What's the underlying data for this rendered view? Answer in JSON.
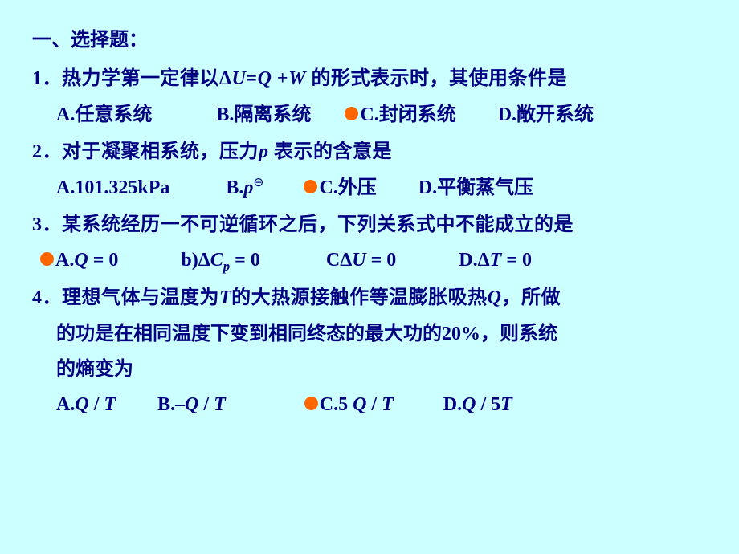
{
  "background_color": "#ccffff",
  "text_color": "#000080",
  "marker_color": "#ff6600",
  "font_size_pt": 18,
  "section_title": "一、选择题：",
  "questions": [
    {
      "num": "1．",
      "text_parts": [
        "热力学第一定律以",
        "Δ",
        "U",
        "=",
        "Q",
        " +",
        "W",
        " 的形式表示时，其使用条件是"
      ],
      "text_italic_idx": [
        2,
        4,
        6
      ],
      "choices": [
        {
          "label": "A.",
          "text": "任意系统",
          "marked": false
        },
        {
          "label": "B.",
          "text": " 隔离系统",
          "marked": false
        },
        {
          "label": "C.",
          "text": "封闭系统",
          "marked": true
        },
        {
          "label": "D.",
          "text": " 敞开系统",
          "marked": false
        }
      ],
      "gaps": [
        0,
        80,
        42,
        52
      ]
    },
    {
      "num": "2．",
      "text": "对于凝聚相系统，压力",
      "text_italic_tail": "p",
      "text_tail": " 表示的含意是",
      "choices": [
        {
          "label": "A.",
          "text": " 101.325kPa",
          "tnr": true,
          "marked": false
        },
        {
          "label": "B.",
          "text_html": " <span class='tnr' style='font-style:italic'>p</span><span class='sup-circle'>⊖</span>",
          "marked": false
        },
        {
          "label": "C.",
          "text": " 外压",
          "marked": true
        },
        {
          "label": "D.",
          "text": " 平衡蒸气压",
          "marked": false
        }
      ],
      "gaps": [
        0,
        70,
        50,
        52
      ]
    },
    {
      "num": "3．",
      "text": "某系统经历一不可逆循环之后，下列关系式中不能成立的是",
      "choices": [
        {
          "label": "A.",
          "text_html": " <span class='tnr' style='font-style:italic'>Q</span> <span class='tnr'>= 0</span>",
          "marked": true
        },
        {
          "label": "b)",
          "text_html": " <span class='tnr'>Δ</span><span class='tnr' style='font-style:italic'>C</span><span class='sub tnr'>p</span> <span class='tnr'>= 0</span>",
          "marked": false
        },
        {
          "label": "C",
          "text_html": " <span class='tnr'>Δ</span><span class='tnr' style='font-style:italic'>U</span> <span class='tnr'>= 0</span>",
          "marked": false
        },
        {
          "label": "D.",
          "text_html": "<span class='tnr'>Δ</span><span class='tnr' style='font-style:italic'>T</span> <span class='tnr'>= 0</span>",
          "marked": false
        }
      ],
      "gaps": [
        0,
        78,
        82,
        78
      ]
    },
    {
      "num": "4．",
      "lines": [
        {
          "pre": "理想气体与温度为",
          "it": "T",
          "post": "的大热源接触作等温膨胀吸热",
          "it2": "Q",
          "post2": "，所做"
        },
        {
          "text": "的功是在相同温度下变到相同终态的最大功的20%，则系统"
        },
        {
          "text": "的熵变为"
        }
      ],
      "choices": [
        {
          "label": "A.",
          "text_html": " <span class='tnr' style='font-style:italic'>Q</span> <span class='tnr'>/</span> <span class='tnr' style='font-style:italic'>T</span>",
          "marked": false
        },
        {
          "label": "B.",
          "text_html": " <span class='tnr'>–</span><span class='tnr' style='font-style:italic'>Q</span> <span class='tnr'>/</span> <span class='tnr' style='font-style:italic'>T</span>",
          "marked": false
        },
        {
          "label": "C.",
          "text_html": " <span class='tnr'>5 </span><span class='tnr' style='font-style:italic'>Q</span> <span class='tnr'>/</span> <span class='tnr' style='font-style:italic'>T</span>",
          "marked": true
        },
        {
          "label": "D.",
          "text_html": " <span class='tnr' style='font-style:italic'>Q</span> <span class='tnr'>/ 5</span><span class='tnr' style='font-style:italic'>T</span>",
          "marked": false
        }
      ],
      "gaps": [
        0,
        52,
        98,
        62
      ]
    }
  ]
}
